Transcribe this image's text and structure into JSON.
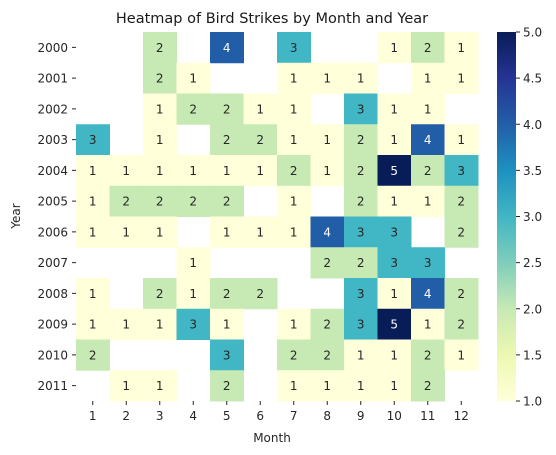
{
  "chart_data": {
    "type": "heatmap",
    "title": "Heatmap of Bird Strikes by Month and Year",
    "xlabel": "Month",
    "ylabel": "Year",
    "x_categories": [
      "1",
      "2",
      "3",
      "4",
      "5",
      "6",
      "7",
      "8",
      "9",
      "10",
      "11",
      "12"
    ],
    "y_categories": [
      "2000",
      "2001",
      "2002",
      "2003",
      "2004",
      "2005",
      "2006",
      "2007",
      "2008",
      "2009",
      "2010",
      "2011"
    ],
    "values": [
      [
        null,
        null,
        2,
        null,
        4,
        null,
        3,
        null,
        null,
        1,
        2,
        1
      ],
      [
        null,
        null,
        2,
        1,
        null,
        null,
        1,
        1,
        1,
        null,
        1,
        1
      ],
      [
        null,
        null,
        1,
        2,
        2,
        1,
        1,
        null,
        3,
        1,
        1,
        null
      ],
      [
        3,
        null,
        1,
        null,
        2,
        2,
        1,
        1,
        2,
        1,
        4,
        1
      ],
      [
        1,
        1,
        1,
        1,
        1,
        1,
        2,
        1,
        2,
        5,
        2,
        3
      ],
      [
        1,
        2,
        2,
        2,
        2,
        null,
        1,
        null,
        2,
        1,
        1,
        2
      ],
      [
        1,
        1,
        1,
        null,
        1,
        1,
        1,
        4,
        3,
        3,
        null,
        2
      ],
      [
        null,
        null,
        null,
        1,
        null,
        null,
        null,
        2,
        2,
        3,
        3,
        null
      ],
      [
        1,
        null,
        2,
        1,
        2,
        2,
        null,
        null,
        3,
        1,
        4,
        2
      ],
      [
        1,
        1,
        1,
        3,
        1,
        null,
        1,
        2,
        3,
        5,
        1,
        2
      ],
      [
        2,
        null,
        null,
        null,
        3,
        null,
        2,
        2,
        1,
        1,
        2,
        1
      ],
      [
        null,
        1,
        1,
        null,
        2,
        null,
        1,
        1,
        1,
        1,
        2,
        null
      ]
    ],
    "colorbar": {
      "min": 1.0,
      "max": 5.0,
      "colormap": "YlGnBu",
      "ticks": [
        "1.0",
        "1.5",
        "2.0",
        "2.5",
        "3.0",
        "3.5",
        "4.0",
        "4.5",
        "5.0"
      ]
    },
    "annotations": true,
    "grid": false
  }
}
